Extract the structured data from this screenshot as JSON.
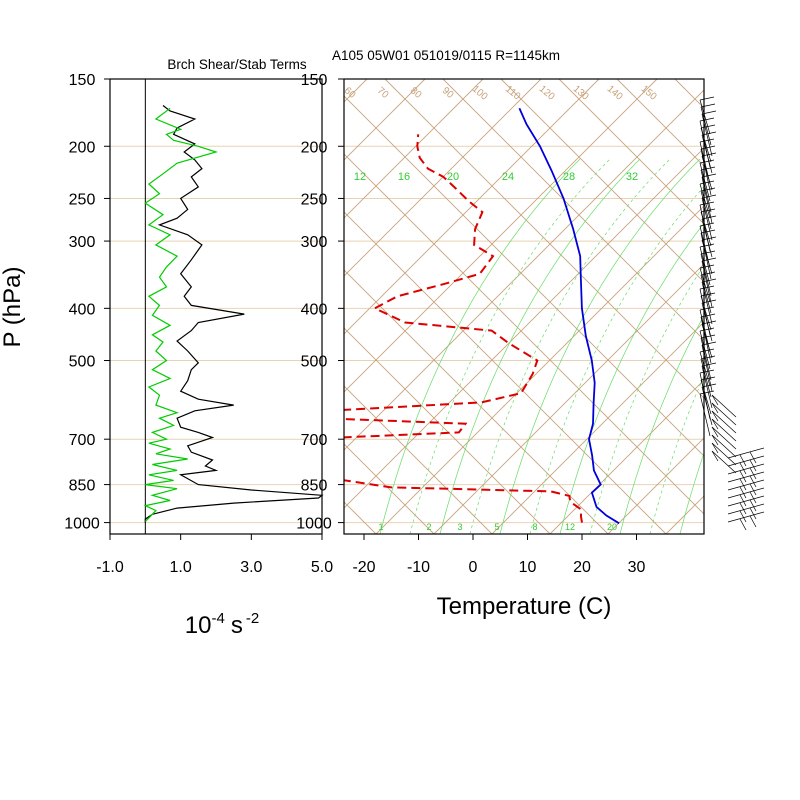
{
  "figure": {
    "title_left": "Brch Shear/Stab Terms",
    "title_right": "A105 05W01 051019/0115 R=1145km",
    "y_axis_label": "P (hPa)",
    "left_xlabel_base": "10",
    "left_xlabel_exp1": "-4",
    "left_xlabel_unit": "s",
    "left_xlabel_exp2": "-2",
    "right_xlabel": "Temperature (C)"
  },
  "colors": {
    "axis": "#000000",
    "grid": "#e8d2b4",
    "dry_adiabat": "#c8a27c",
    "moist": "#66dd66",
    "temperature": "#0000dd",
    "dewpoint": "#dd0000",
    "shear": "#000000",
    "stability": "#00cc00",
    "barb": "#000000"
  },
  "chart_data": [
    {
      "type": "line",
      "panel": "left",
      "title": "Brch Shear/Stab Terms",
      "xlabel": "10-4 s-2",
      "ylabel": "P (hPa)",
      "y_scale": "log-pressure (reversed)",
      "xlim": [
        -1.0,
        5.0
      ],
      "ylim": [
        1000,
        150
      ],
      "x_ticks": [
        "-1.0",
        "1.0",
        "3.0",
        "5.0"
      ],
      "y_ticks": [
        "150",
        "200",
        "250",
        "300",
        "400",
        "500",
        "700",
        "850",
        "1000"
      ],
      "grid": true,
      "series": [
        {
          "line": "black",
          "points": [
            [
              0.0,
              1000
            ],
            [
              0.0,
              985
            ],
            [
              0.2,
              965
            ],
            [
              0.9,
              940
            ],
            [
              2.5,
              920
            ],
            [
              4.9,
              900
            ],
            [
              5.0,
              890
            ],
            [
              3.0,
              870
            ],
            [
              1.5,
              850
            ],
            [
              1.0,
              815
            ],
            [
              2.0,
              800
            ],
            [
              1.7,
              785
            ],
            [
              1.9,
              765
            ],
            [
              1.3,
              740
            ],
            [
              1.2,
              720
            ],
            [
              1.9,
              695
            ],
            [
              1.5,
              680
            ],
            [
              1.0,
              665
            ],
            [
              0.9,
              640
            ],
            [
              1.4,
              620
            ],
            [
              2.5,
              605
            ],
            [
              1.5,
              590
            ],
            [
              1.0,
              570
            ],
            [
              1.2,
              545
            ],
            [
              1.3,
              520
            ],
            [
              1.5,
              505
            ],
            [
              1.2,
              480
            ],
            [
              0.9,
              460
            ],
            [
              1.3,
              440
            ],
            [
              1.5,
              425
            ],
            [
              2.8,
              410
            ],
            [
              1.3,
              395
            ],
            [
              1.1,
              380
            ],
            [
              1.3,
              365
            ],
            [
              1.0,
              345
            ],
            [
              1.3,
              325
            ],
            [
              1.6,
              305
            ],
            [
              1.2,
              292
            ],
            [
              0.4,
              280
            ],
            [
              0.9,
              272
            ],
            [
              1.2,
              262
            ],
            [
              1.0,
              250
            ],
            [
              1.5,
              238
            ],
            [
              1.3,
              228
            ],
            [
              1.6,
              220
            ],
            [
              1.4,
              212
            ],
            [
              1.1,
              205
            ],
            [
              1.4,
              198
            ],
            [
              0.8,
              190
            ],
            [
              0.9,
              185
            ],
            [
              1.4,
              178
            ],
            [
              0.7,
              172
            ],
            [
              0.5,
              168
            ]
          ]
        },
        {
          "line": "green",
          "points": [
            [
              0.0,
              995
            ],
            [
              0.1,
              980
            ],
            [
              0.3,
              950
            ],
            [
              0.0,
              930
            ],
            [
              0.7,
              910
            ],
            [
              0.2,
              890
            ],
            [
              0.9,
              865
            ],
            [
              0.0,
              850
            ],
            [
              0.8,
              835
            ],
            [
              0.1,
              815
            ],
            [
              0.9,
              800
            ],
            [
              0.2,
              780
            ],
            [
              1.2,
              762
            ],
            [
              0.3,
              745
            ],
            [
              0.7,
              730
            ],
            [
              0.1,
              712
            ],
            [
              0.6,
              700
            ],
            [
              0.2,
              680
            ],
            [
              0.8,
              660
            ],
            [
              0.4,
              640
            ],
            [
              0.9,
              625
            ],
            [
              0.3,
              605
            ],
            [
              0.4,
              580
            ],
            [
              0.1,
              560
            ],
            [
              0.7,
              540
            ],
            [
              0.2,
              520
            ],
            [
              0.6,
              500
            ],
            [
              0.3,
              480
            ],
            [
              0.5,
              462
            ],
            [
              0.2,
              448
            ],
            [
              0.7,
              430
            ],
            [
              0.2,
              412
            ],
            [
              0.4,
              395
            ],
            [
              0.1,
              380
            ],
            [
              0.6,
              365
            ],
            [
              0.4,
              350
            ],
            [
              0.6,
              335
            ],
            [
              0.9,
              320
            ],
            [
              0.3,
              305
            ],
            [
              0.7,
              292
            ],
            [
              0.1,
              280
            ],
            [
              0.5,
              268
            ],
            [
              0.0,
              255
            ],
            [
              0.4,
              245
            ],
            [
              0.1,
              235
            ],
            [
              0.5,
              225
            ],
            [
              0.9,
              215
            ],
            [
              2.0,
              205
            ],
            [
              1.5,
              200
            ],
            [
              0.8,
              195
            ],
            [
              0.6,
              190
            ],
            [
              1.0,
              186
            ],
            [
              0.3,
              178
            ],
            [
              0.7,
              170
            ]
          ]
        }
      ]
    },
    {
      "type": "line",
      "panel": "right",
      "title": "A105 05W01 051019/0115 R=1145km",
      "xlabel": "Temperature (C)",
      "y_scale": "log-pressure (reversed), skew-T",
      "xlim": [
        -25,
        40
      ],
      "ylim": [
        1000,
        150
      ],
      "x_ticks": [
        "-20",
        "-10",
        "0",
        "10",
        "20",
        "30"
      ],
      "y_ticks": [
        "150",
        "200",
        "250",
        "300",
        "400",
        "500",
        "700",
        "850",
        "1000"
      ],
      "grid": true,
      "isotherm_labels": [
        "60",
        "70",
        "80",
        "90",
        "100",
        "110",
        "120",
        "130",
        "140",
        "150"
      ],
      "mixing_ratio_labels_upper": [
        "12",
        "16",
        "20",
        "24",
        "28",
        "32"
      ],
      "mixing_ratio_labels_lower": [
        "1",
        "2",
        "3",
        "5",
        "8",
        "12",
        "20"
      ],
      "series": [
        {
          "line": "blue-solid",
          "points": [
            [
              26.9,
              1003
            ],
            [
              23.5,
              970
            ],
            [
              20.5,
              935
            ],
            [
              17.7,
              880
            ],
            [
              18.2,
              850
            ],
            [
              15.0,
              800
            ],
            [
              12.6,
              750
            ],
            [
              9.8,
              700
            ],
            [
              8.4,
              655
            ],
            [
              5.7,
              600
            ],
            [
              3.1,
              550
            ],
            [
              -0.5,
              500
            ],
            [
              -5.0,
              450
            ],
            [
              -9.5,
              400
            ],
            [
              -14.0,
              350
            ],
            [
              -17.0,
              320
            ],
            [
              -22.0,
              285
            ],
            [
              -28.0,
              250
            ],
            [
              -34.0,
              222
            ],
            [
              -39.5,
              200
            ],
            [
              -45.0,
              182
            ],
            [
              -48.5,
              170
            ]
          ]
        },
        {
          "line": "red-dashed",
          "points": [
            [
              20.0,
              1000
            ],
            [
              19.0,
              975
            ],
            [
              18.0,
              945
            ],
            [
              15.0,
              915
            ],
            [
              14.0,
              892
            ],
            [
              10.0,
              875
            ],
            [
              -20.0,
              860
            ],
            [
              -35.0,
              820
            ],
            [
              -33.0,
              800
            ],
            [
              -32.0,
              770
            ],
            [
              -34.0,
              735
            ],
            [
              -45.0,
              710
            ],
            [
              -50.0,
              705
            ],
            [
              -15.0,
              680
            ],
            [
              -15.0,
              655
            ],
            [
              -42.0,
              640
            ],
            [
              -42.0,
              620
            ],
            [
              -15.0,
              598
            ],
            [
              -9.0,
              575
            ],
            [
              -9.5,
              530
            ],
            [
              -10.5,
              500
            ],
            [
              -18.0,
              465
            ],
            [
              -23.0,
              440
            ],
            [
              -40.0,
              425
            ],
            [
              -47.5,
              400
            ],
            [
              -45.0,
              380
            ],
            [
              -38.0,
              360
            ],
            [
              -33.0,
              345
            ],
            [
              -33.0,
              320
            ],
            [
              -38.0,
              305
            ],
            [
              -40.0,
              285
            ],
            [
              -41.0,
              265
            ],
            [
              -45.0,
              253
            ],
            [
              -49.0,
              240
            ],
            [
              -53.0,
              228
            ],
            [
              -57.0,
              220
            ],
            [
              -60.0,
              210
            ],
            [
              -62.0,
              200
            ],
            [
              -63.5,
              190
            ]
          ]
        }
      ],
      "wind_barbs_present": true
    }
  ]
}
